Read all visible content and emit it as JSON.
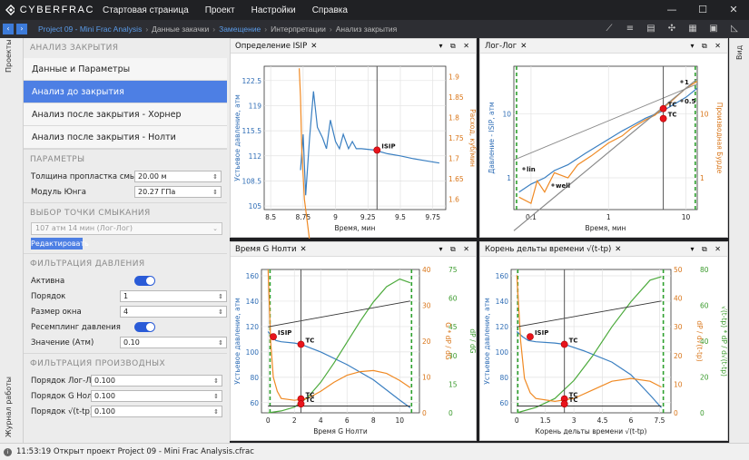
{
  "titlebar": {
    "brand": "CYBERFRAC",
    "menu": [
      "Стартовая страница",
      "Проект",
      "Настройки",
      "Справка"
    ],
    "buttons": [
      "—",
      "☐",
      "✕"
    ]
  },
  "breadcrumbs": [
    {
      "label": "Project 09 - Mini Frac Analysis",
      "link": true
    },
    {
      "label": "Данные закачки",
      "link": false
    },
    {
      "label": "Замещение",
      "link": true
    },
    {
      "label": "Интерпретации",
      "link": false
    },
    {
      "label": "Анализ закрытия",
      "link": false
    }
  ],
  "left_tabs": {
    "projects": "Проекты",
    "journal": "Журнал работы"
  },
  "right_tab": "Вид",
  "sidebar": {
    "section_analysis": "АНАЛИЗ ЗАКРЫТИЯ",
    "nav": [
      "Данные и Параметры",
      "Анализ до закрытия",
      "Анализ после закрытия - Хорнер",
      "Анализ после закрытия - Нолти"
    ],
    "section_params": "ПАРАМЕТРЫ",
    "params": [
      {
        "label": "Толщина пропластка смыкания",
        "value": "20.00 м"
      },
      {
        "label": "Модуль Юнга",
        "value": "20.27 ГПа"
      }
    ],
    "section_point": "ВЫБОР ТОЧКИ СМЫКАНИЯ",
    "point_select": "107 атм 14 мин (Лог-Лог)",
    "edit_button": "Редактировать",
    "section_filter": "ФИЛЬТРАЦИЯ ДАВЛЕНИЯ",
    "active_label": "Активна",
    "order_label": "Порядок",
    "order_value": "1",
    "window_label": "Размер окна",
    "window_value": "4",
    "resampling_label": "Ресемплинг давления",
    "value_label": "Значение (Атм)",
    "value_value": "0.10",
    "section_prod": "ФИЛЬТРАЦИЯ ПРОИЗВОДНЫХ",
    "prod": [
      {
        "label": "Порядок Лог-Лог",
        "value": "0.100"
      },
      {
        "label": "Порядок G Нолти",
        "value": "0.100"
      },
      {
        "label": "Порядок √(t-tp)",
        "value": "0.100"
      }
    ]
  },
  "status": "11:53:19 Открыт проект Project 09 - Mini Frac Analysis.cfrac",
  "panels": {
    "isip": {
      "title": "Определение ISIP",
      "controls": "▾ ⧉ ✕"
    },
    "loglog": {
      "title": "Лог-Лог",
      "controls": "▾ ⧉ ✕"
    },
    "gtime": {
      "title": "Время G Нолти",
      "controls": "▾ ⧉ ✕"
    },
    "sqrt": {
      "title": "Корень дельты времени √(t-tp)",
      "controls": "▾ ⧉ ✕"
    }
  },
  "chart_data": [
    {
      "type": "line",
      "xlabel": "Время, мин",
      "ylabel": "Устьевое давление, атм",
      "y2label": "Расход, куб/мин",
      "x_ticks": [
        8.5,
        8.75,
        9,
        9.25,
        9.5,
        9.75
      ],
      "y_ticks": [
        105,
        108.5,
        112,
        115.5,
        119,
        122.5
      ],
      "y2_ticks": [
        1.6,
        1.65,
        1.7,
        1.75,
        1.8,
        1.85,
        1.9
      ],
      "xlim": [
        8.45,
        9.85
      ],
      "ylim": [
        104.5,
        124.5
      ],
      "y2lim": [
        1.575,
        1.925
      ],
      "grid": true,
      "series": [
        {
          "color": "#3a7fc1",
          "x": [
            8.73,
            8.75,
            8.77,
            8.8,
            8.83,
            8.86,
            8.9,
            8.93,
            8.96,
            9.0,
            9.03,
            9.06,
            9.1,
            9.13,
            9.16,
            9.2,
            9.3,
            9.4,
            9.5,
            9.6,
            9.7,
            9.8
          ],
          "y": [
            110,
            115,
            106.5,
            114.5,
            121,
            116,
            114.5,
            113,
            117,
            114,
            113,
            115,
            113,
            114,
            113,
            113,
            112.8,
            112.3,
            112,
            111.6,
            111.3,
            111
          ]
        },
        {
          "color": "#f08a24",
          "axis": "y2",
          "x": [
            8.72,
            8.73,
            8.74,
            8.76,
            8.8
          ],
          "y": [
            1.92,
            1.85,
            1.72,
            1.6,
            1.5
          ]
        }
      ],
      "vline": 9.32,
      "points": [
        {
          "label": "ISIP",
          "x": 9.32,
          "y": 112.8
        }
      ]
    },
    {
      "type": "line",
      "xlabel": "Время, мин",
      "ylabel": "Давление - ISIP, атм",
      "y2label": "Производная Бурде",
      "log_x": true,
      "log_y": true,
      "x_ticks": [
        0.1,
        1,
        10
      ],
      "y_ticks": [
        1,
        10
      ],
      "y2_ticks": [
        1,
        10
      ],
      "xlim": [
        0.06,
        14
      ],
      "ylim": [
        0.32,
        55
      ],
      "grid": true,
      "vline": 5.1,
      "series": [
        {
          "color": "#3a7fc1",
          "x": [
            0.07,
            0.1,
            0.15,
            0.2,
            0.3,
            0.5,
            0.8,
            1,
            1.5,
            2,
            3,
            5,
            7,
            10,
            14
          ],
          "y": [
            0.6,
            0.8,
            1,
            1.3,
            1.6,
            2.4,
            3.4,
            4,
            5.4,
            6.5,
            8.5,
            11,
            14,
            18,
            25
          ]
        },
        {
          "color": "#f08a24",
          "x": [
            0.07,
            0.1,
            0.12,
            0.15,
            0.2,
            0.3,
            0.4,
            0.6,
            1,
            1.5,
            2,
            3,
            4,
            5,
            7,
            10,
            14
          ],
          "y": [
            0.5,
            0.4,
            0.9,
            0.6,
            1.2,
            1,
            1.6,
            2.2,
            3.5,
            4.5,
            6,
            8,
            9.5,
            12,
            17,
            25,
            32
          ]
        },
        {
          "color": "#8a8a8a",
          "x": [
            0.06,
            14
          ],
          "y": [
            0.15,
            35
          ]
        },
        {
          "color": "#8a8a8a",
          "x": [
            0.06,
            14
          ],
          "y": [
            1.9,
            29
          ]
        }
      ],
      "points": [
        {
          "label": "TC",
          "x": 5.1,
          "y": 12
        },
        {
          "label": "TC",
          "x": 5.1,
          "y": 8.4
        }
      ],
      "annotations": [
        "lin",
        "well",
        "1",
        "0.5"
      ]
    },
    {
      "type": "line",
      "xlabel": "Время G Нолти",
      "ylabel": "Устьевое давление, атм",
      "y2label": "G * dP / dG",
      "y3label": "dP / dG",
      "x_ticks": [
        0,
        2,
        4,
        6,
        8,
        10
      ],
      "y_ticks": [
        60,
        80,
        100,
        120,
        140,
        160
      ],
      "y2_ticks": [
        0,
        10,
        20,
        30,
        40
      ],
      "y3_ticks": [
        0,
        15,
        30,
        45,
        60,
        75
      ],
      "xlim": [
        -0.5,
        11.5
      ],
      "ylim": [
        52,
        165
      ],
      "grid": true,
      "vline": 2.5,
      "series": [
        {
          "color": "#3a7fc1",
          "x": [
            0,
            0.3,
            0.6,
            1,
            2,
            2.5,
            4,
            6,
            8,
            10,
            10.8
          ],
          "y": [
            116,
            112,
            109,
            108,
            107,
            106,
            100,
            90,
            78,
            62,
            56
          ]
        },
        {
          "color": "#4caa3c",
          "x": [
            0,
            1,
            2,
            3,
            4,
            5,
            6,
            7,
            8,
            9,
            10,
            10.8
          ],
          "y": [
            0,
            1,
            3,
            8,
            16,
            26,
            37,
            48,
            58,
            66,
            70,
            68
          ]
        },
        {
          "color": "#f08a24",
          "x": [
            0,
            0.2,
            0.4,
            0.7,
            1,
            2,
            3,
            4,
            5,
            6,
            7,
            8,
            9,
            10,
            10.8
          ],
          "y": [
            40,
            20,
            10,
            6,
            4,
            3.5,
            4,
            6,
            8.5,
            10.5,
            11.5,
            11.8,
            11,
            9,
            7
          ]
        },
        {
          "color": "#333333",
          "x": [
            0,
            10.8
          ],
          "y": [
            0,
            18
          ]
        },
        {
          "color": "#333333",
          "x": [
            0,
            10.8
          ],
          "y": [
            0,
            0
          ]
        }
      ],
      "points": [
        {
          "label": "ISIP",
          "x": 0.4,
          "y": 112
        },
        {
          "label": "TC",
          "x": 2.5,
          "y": 106
        },
        {
          "label": "TC",
          "x": 2.5,
          "y": 63
        },
        {
          "label": "TC",
          "x": 2.5,
          "y": 59
        }
      ],
      "markers": [
        0.15,
        10.9
      ]
    },
    {
      "type": "line",
      "xlabel": "Корень дельты времени √(t-tp)",
      "ylabel": "Устьевое давление, атм",
      "y2label": "dP / d√(t-tp)",
      "y3label": "√(t-tp) * dP / d√(t-tp)",
      "x_ticks": [
        0,
        1.5,
        3,
        4.5,
        6,
        7.5
      ],
      "y_ticks": [
        60,
        80,
        100,
        120,
        140,
        160
      ],
      "y2_ticks": [
        0,
        10,
        20,
        30,
        40,
        50
      ],
      "y3_ticks": [
        0,
        20,
        40,
        60,
        80
      ],
      "xlim": [
        -0.3,
        8.1
      ],
      "ylim": [
        52,
        165
      ],
      "grid": true,
      "vline": 2.5,
      "series": [
        {
          "color": "#3a7fc1",
          "x": [
            0,
            0.3,
            0.6,
            1,
            2,
            2.5,
            3.5,
            5,
            6,
            7,
            7.6
          ],
          "y": [
            116,
            112,
            109,
            108,
            107,
            106,
            101,
            92,
            82,
            66,
            56
          ]
        },
        {
          "color": "#4caa3c",
          "x": [
            0,
            1,
            2,
            3,
            4,
            5,
            6,
            7,
            7.6
          ],
          "y": [
            0,
            3,
            8,
            18,
            32,
            48,
            62,
            74,
            76
          ]
        },
        {
          "color": "#f08a24",
          "x": [
            0,
            0.2,
            0.4,
            0.7,
            1,
            2,
            3,
            4,
            5,
            6,
            7,
            7.6
          ],
          "y": [
            48,
            25,
            12,
            7,
            5,
            4,
            5,
            8,
            11,
            12,
            11,
            9
          ]
        },
        {
          "color": "#333333",
          "x": [
            0,
            7.6
          ],
          "y": [
            0,
            18
          ]
        },
        {
          "color": "#333333",
          "x": [
            0,
            7.6
          ],
          "y": [
            0,
            0
          ]
        }
      ],
      "points": [
        {
          "label": "ISIP",
          "x": 0.7,
          "y": 112
        },
        {
          "label": "TC",
          "x": 2.5,
          "y": 106
        },
        {
          "label": "TC",
          "x": 2.5,
          "y": 63
        },
        {
          "label": "TC",
          "x": 2.5,
          "y": 59
        }
      ],
      "markers": [
        0.05,
        7.7
      ]
    }
  ]
}
